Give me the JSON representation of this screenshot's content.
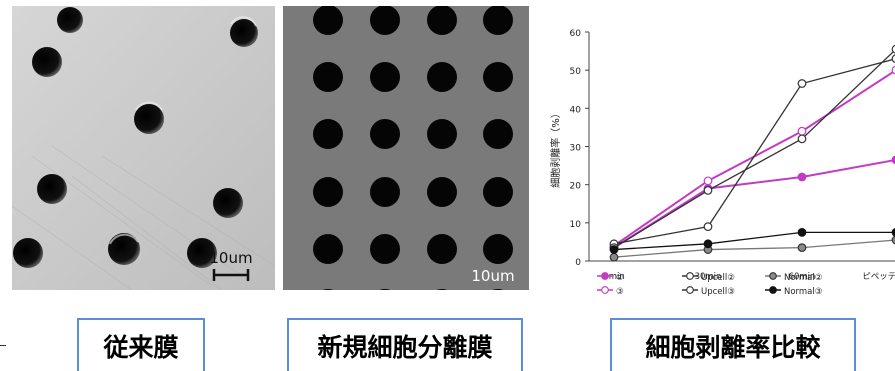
{
  "panels": {
    "conventional": {
      "caption": "従来膜",
      "scale_label": "10um",
      "background": "#c9c9c9"
    },
    "new_membrane": {
      "caption": "新規細胞分離膜",
      "scale_label": "10um",
      "background": "#7a7a7a"
    },
    "comparison": {
      "caption": "細胞剥離率比較"
    }
  },
  "colors": {
    "caption_border": "#5b8ed8",
    "magenta": "#c23bc2",
    "dark": "#333333",
    "gray": "#777777"
  },
  "chart_data": {
    "type": "line",
    "title": "",
    "xlabel": "",
    "ylabel": "細胞剥離率（%）",
    "categories": [
      "0min",
      "30min",
      "60min",
      "ピペッティング後"
    ],
    "ylim": [
      0,
      60
    ],
    "yticks": [
      0,
      10,
      20,
      30,
      40,
      50,
      60
    ],
    "grid": false,
    "legend_position": "bottom",
    "series": [
      {
        "name": "②",
        "values": [
          3.5,
          19,
          22,
          26.5
        ],
        "color": "#c23bc2",
        "marker": "filled"
      },
      {
        "name": "③",
        "values": [
          4,
          21,
          34,
          50
        ],
        "color": "#c23bc2",
        "marker": "open"
      },
      {
        "name": "Upcell②",
        "values": [
          4.5,
          9,
          46.5,
          53
        ],
        "color": "#333333",
        "marker": "open"
      },
      {
        "name": "Upcell③",
        "values": [
          3.5,
          18.5,
          32,
          55.5
        ],
        "color": "#333333",
        "marker": "open"
      },
      {
        "name": "Normal②",
        "values": [
          1,
          3,
          3.5,
          5.5
        ],
        "color": "#777777",
        "marker": "gray"
      },
      {
        "name": "Normal③",
        "values": [
          3,
          4.5,
          7.5,
          7.5
        ],
        "color": "#111111",
        "marker": "filled"
      }
    ]
  }
}
